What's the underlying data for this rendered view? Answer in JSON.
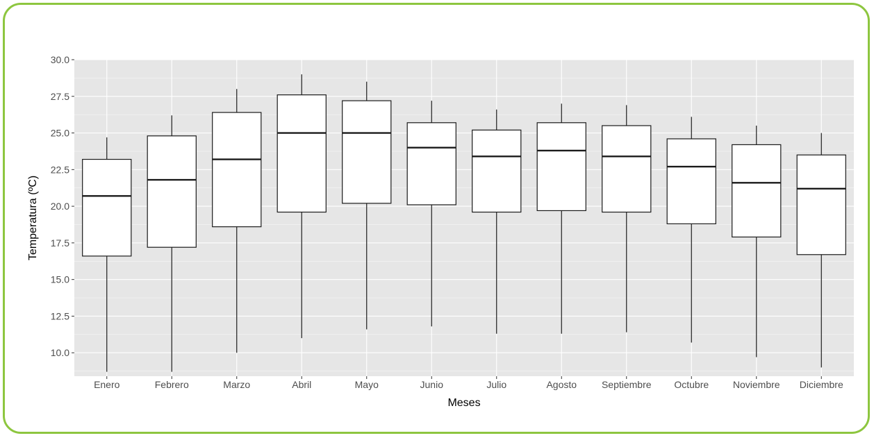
{
  "colors": {
    "frame_border": "#8dc63f",
    "panel_background": "#e6e6e6",
    "grid": "#ffffff",
    "box_fill": "#ffffff",
    "box_stroke": "#1a1a1a"
  },
  "chart_data": {
    "type": "boxplot",
    "title": "",
    "xlabel": "Meses",
    "ylabel": "Temperatura (ºC)",
    "ylim": [
      8.4,
      30.0
    ],
    "yticks": [
      10.0,
      12.5,
      15.0,
      17.5,
      20.0,
      22.5,
      25.0,
      27.5,
      30.0
    ],
    "ytick_labels": [
      "10.0",
      "12.5",
      "15.0",
      "17.5",
      "20.0",
      "22.5",
      "25.0",
      "27.5",
      "30.0"
    ],
    "grid": true,
    "categories": [
      "Enero",
      "Febrero",
      "Marzo",
      "Abril",
      "Mayo",
      "Junio",
      "Julio",
      "Agosto",
      "Septiembre",
      "Octubre",
      "Noviembre",
      "Diciembre"
    ],
    "boxes": [
      {
        "min": 8.7,
        "q1": 16.6,
        "median": 20.7,
        "q3": 23.2,
        "max": 24.7
      },
      {
        "min": 8.7,
        "q1": 17.2,
        "median": 21.8,
        "q3": 24.8,
        "max": 26.2
      },
      {
        "min": 10.0,
        "q1": 18.6,
        "median": 23.2,
        "q3": 26.4,
        "max": 28.0
      },
      {
        "min": 11.0,
        "q1": 19.6,
        "median": 25.0,
        "q3": 27.6,
        "max": 29.0
      },
      {
        "min": 11.6,
        "q1": 20.2,
        "median": 25.0,
        "q3": 27.2,
        "max": 28.5
      },
      {
        "min": 11.8,
        "q1": 20.1,
        "median": 24.0,
        "q3": 25.7,
        "max": 27.2
      },
      {
        "min": 11.3,
        "q1": 19.6,
        "median": 23.4,
        "q3": 25.2,
        "max": 26.6
      },
      {
        "min": 11.3,
        "q1": 19.7,
        "median": 23.8,
        "q3": 25.7,
        "max": 27.0
      },
      {
        "min": 11.4,
        "q1": 19.6,
        "median": 23.4,
        "q3": 25.5,
        "max": 26.9
      },
      {
        "min": 10.7,
        "q1": 18.8,
        "median": 22.7,
        "q3": 24.6,
        "max": 26.1
      },
      {
        "min": 9.7,
        "q1": 17.9,
        "median": 21.6,
        "q3": 24.2,
        "max": 25.5
      },
      {
        "min": 9.0,
        "q1": 16.7,
        "median": 21.2,
        "q3": 23.5,
        "max": 25.0
      }
    ]
  }
}
